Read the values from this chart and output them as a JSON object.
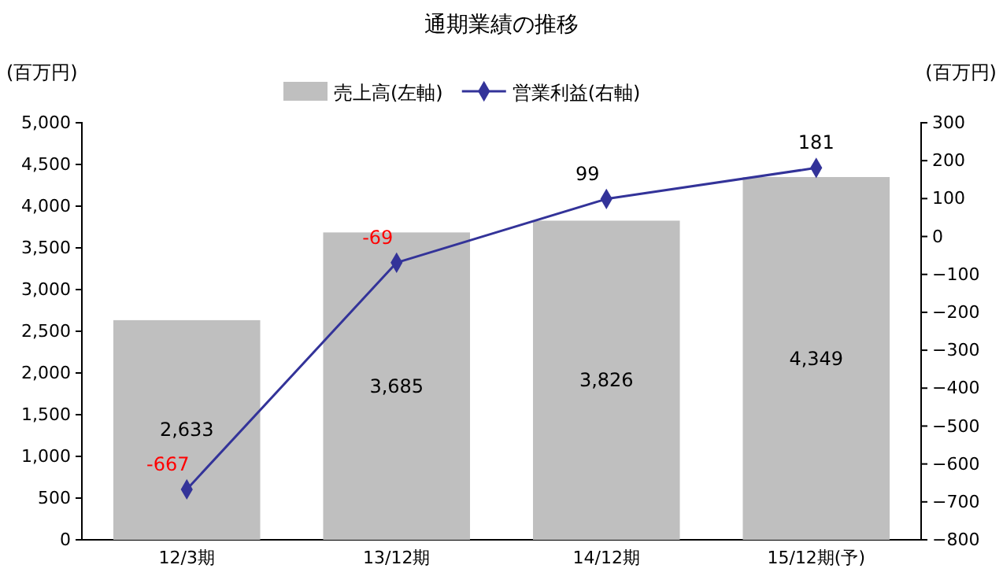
{
  "chart_data": {
    "type": "bar",
    "title": "通期業績の推移",
    "ylabel": "(百万円)",
    "y2label": "(百万円)",
    "categories": [
      "12/3期",
      "13/12期",
      "14/12期",
      "15/12期(予)"
    ],
    "series": [
      {
        "name": "売上高(左軸)",
        "color": "#bfbfbf",
        "values": [
          2633,
          3685,
          3826,
          4349
        ],
        "value_labels": [
          "2,633",
          "3,685",
          "3,826",
          "4,349"
        ]
      },
      {
        "name": "営業利益(右軸)",
        "type": "line",
        "axis": "y2",
        "color": "#333399",
        "marker": "diamond",
        "values": [
          -667,
          -69,
          99,
          181
        ],
        "value_labels": [
          "-667",
          "-69",
          "99",
          "181"
        ]
      }
    ],
    "ylim": [
      0,
      5000
    ],
    "yticks": [
      0,
      500,
      {
        "value": 1000,
        "label": "1,000"
      },
      {
        "value": 1500,
        "label": "1,500"
      },
      {
        "value": 2000,
        "label": "2,000"
      },
      {
        "value": 2500,
        "label": "2,500"
      },
      {
        "value": 3000,
        "label": "3,000"
      },
      {
        "value": 3500,
        "label": "3,500"
      },
      {
        "value": 4000,
        "label": "4,000"
      },
      {
        "value": 4500,
        "label": "4,500"
      },
      {
        "value": 5000,
        "label": "5,000"
      }
    ],
    "y2lim": [
      -800,
      300
    ],
    "y2ticks": [
      -800,
      -700,
      -600,
      -500,
      -400,
      -300,
      -200,
      -100,
      0,
      100,
      200,
      300
    ],
    "legend": "top",
    "grid": false
  }
}
